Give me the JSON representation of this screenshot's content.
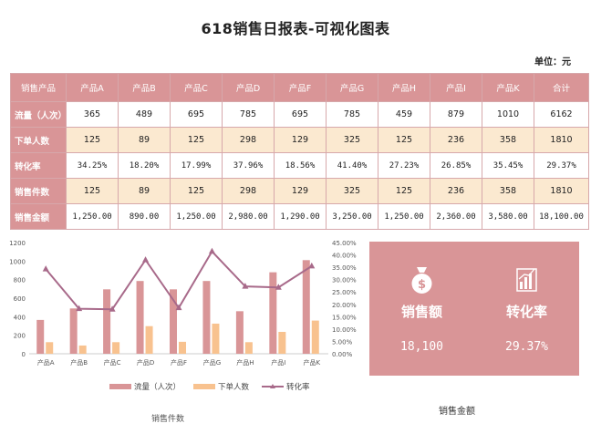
{
  "title": "618销售日报表-可视化图表",
  "unit_label": "单位：元",
  "table": {
    "headers": [
      "销售产品",
      "产品A",
      "产品B",
      "产品C",
      "产品D",
      "产品F",
      "产品G",
      "产品H",
      "产品I",
      "产品K",
      "合计"
    ],
    "rows": [
      {
        "label": "流量（人次）",
        "cells": [
          "365",
          "489",
          "695",
          "785",
          "695",
          "785",
          "459",
          "879",
          "1010",
          "6162"
        ]
      },
      {
        "label": "下单人数",
        "cells": [
          "125",
          "89",
          "125",
          "298",
          "129",
          "325",
          "125",
          "236",
          "358",
          "1810"
        ]
      },
      {
        "label": "转化率",
        "cells": [
          "34.25%",
          "18.20%",
          "17.99%",
          "37.96%",
          "18.56%",
          "41.40%",
          "27.23%",
          "26.85%",
          "35.45%",
          "29.37%"
        ]
      },
      {
        "label": "销售件数",
        "cells": [
          "125",
          "89",
          "125",
          "298",
          "129",
          "325",
          "125",
          "236",
          "358",
          "1810"
        ]
      },
      {
        "label": "销售金额",
        "cells": [
          "1,250.00",
          "890.00",
          "1,250.00",
          "2,980.00",
          "1,290.00",
          "3,250.00",
          "1,250.00",
          "2,360.00",
          "3,580.00",
          "18,100.00"
        ]
      }
    ]
  },
  "kpi": {
    "sales_label": "销售额",
    "sales_value": "18,100",
    "sales_icon": "money-bag-icon",
    "conv_label": "转化率",
    "conv_value": "29.37%",
    "conv_icon": "bar-chart-icon"
  },
  "bottom_label": "销售金额",
  "bottom_label2": "销售件数",
  "chart_data": {
    "type": "bar",
    "categories": [
      "产品A",
      "产品B",
      "产品C",
      "产品D",
      "产品F",
      "产品G",
      "产品H",
      "产品I",
      "产品K"
    ],
    "series": [
      {
        "name": "流量（人次）",
        "type": "bar",
        "axis": "left",
        "color": "#d99597",
        "values": [
          365,
          489,
          695,
          785,
          695,
          785,
          459,
          879,
          1010
        ]
      },
      {
        "name": "下单人数",
        "type": "bar",
        "axis": "left",
        "color": "#f8c28f",
        "values": [
          125,
          89,
          125,
          298,
          129,
          325,
          125,
          236,
          358
        ]
      },
      {
        "name": "转化率",
        "type": "line",
        "axis": "right",
        "color": "#a86a8a",
        "values": [
          0.3425,
          0.182,
          0.1799,
          0.3796,
          0.1856,
          0.414,
          0.2723,
          0.2685,
          0.3545
        ]
      }
    ],
    "y_left": {
      "min": 0,
      "max": 1200,
      "ticks": [
        0,
        200,
        400,
        600,
        800,
        1000,
        1200
      ]
    },
    "y_right": {
      "min": 0,
      "max": 0.45,
      "ticks": [
        "0.00%",
        "5.00%",
        "10.00%",
        "15.00%",
        "20.00%",
        "25.00%",
        "30.00%",
        "35.00%",
        "40.00%",
        "45.00%"
      ]
    },
    "legend": [
      "流量（人次）",
      "下单人数",
      "转化率"
    ],
    "legend_position": "bottom"
  }
}
